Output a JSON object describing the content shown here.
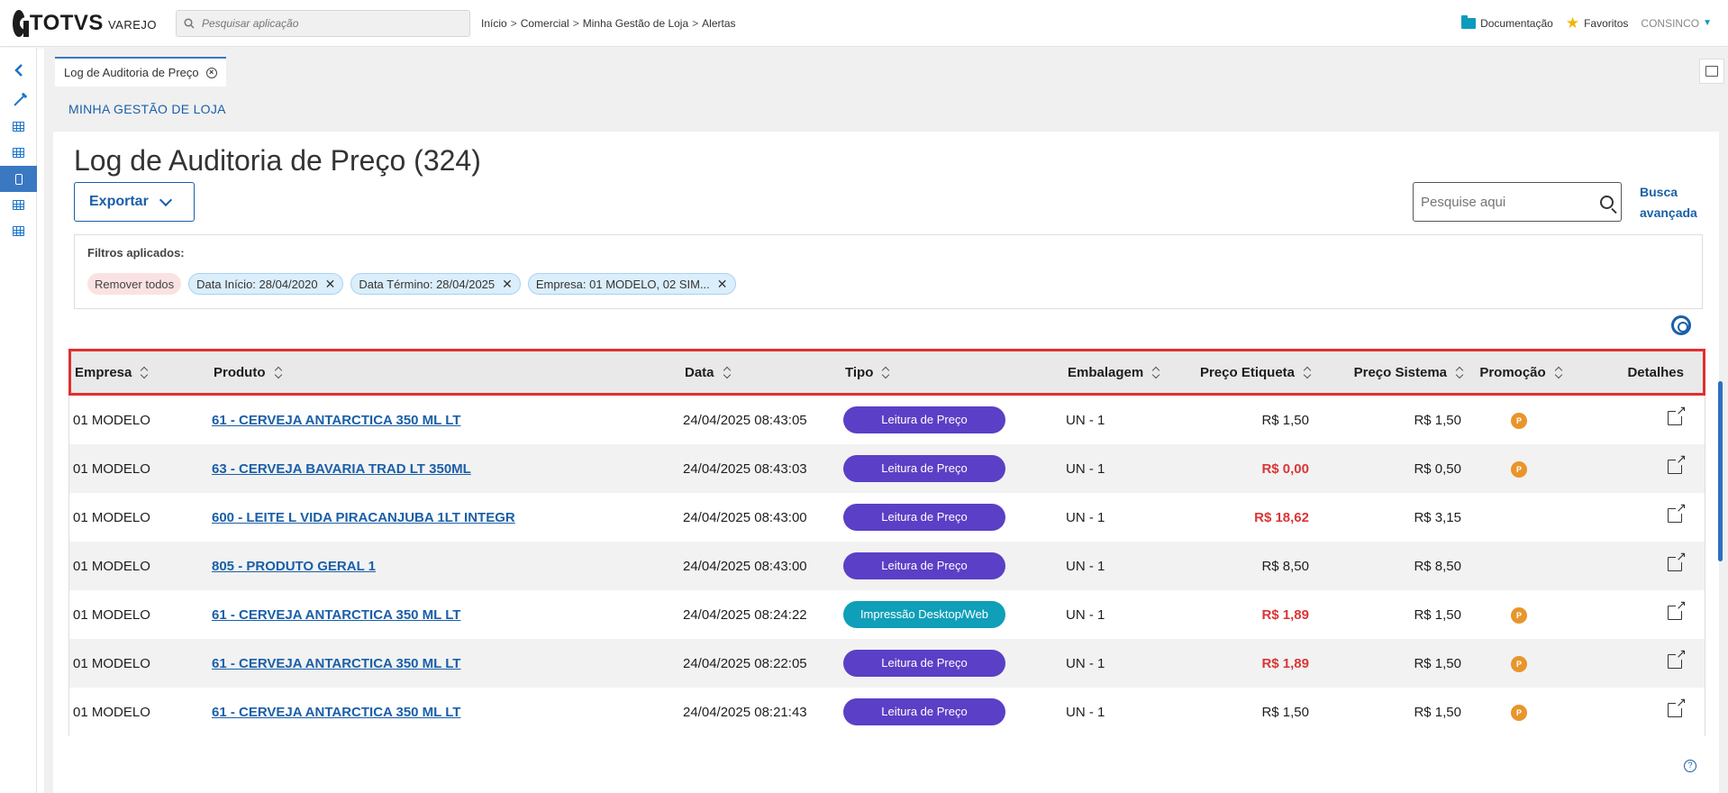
{
  "app": {
    "brand": "TOTVS",
    "brand_sub": "VAREJO"
  },
  "search": {
    "placeholder": "Pesquisar aplicação"
  },
  "breadcrumb": [
    "Início",
    "Comercial",
    "Minha Gestão de Loja",
    "Alertas"
  ],
  "breadcrumb_sep": ">",
  "header_links": {
    "docs": "Documentação",
    "favorites": "Favoritos",
    "user": "CONSINCO"
  },
  "tab": {
    "label": "Log de Auditoria de Preço"
  },
  "section": {
    "title": "MINHA GESTÃO DE LOJA"
  },
  "page": {
    "title": "Log de Auditoria de Preço (324)",
    "export_label": "Exportar",
    "search_placeholder": "Pesquise aqui",
    "adv_search_line1": "Busca",
    "adv_search_line2": "avançada"
  },
  "filters": {
    "label": "Filtros aplicados:",
    "remove_all": "Remover todos",
    "chips": [
      "Data Início: 28/04/2020",
      "Data Término: 28/04/2025",
      "Empresa: 01 MODELO, 02 SIM..."
    ]
  },
  "table": {
    "headers": {
      "empresa": "Empresa",
      "produto": "Produto",
      "data": "Data",
      "tipo": "Tipo",
      "embalagem": "Embalagem",
      "preco_etiqueta": "Preço Etiqueta",
      "preco_sistema": "Preço Sistema",
      "promocao": "Promoção",
      "detalhes": "Detalhes"
    },
    "rows": [
      {
        "empresa": "01 MODELO",
        "produto": "61 - CERVEJA ANTARCTICA 350 ML LT",
        "data": "24/04/2025 08:43:05",
        "tipo": "Leitura de Preço",
        "embalagem": "UN - 1",
        "preco_etiqueta": "R$ 1,50",
        "preco_sistema": "R$ 1,50",
        "promocao": "P"
      },
      {
        "empresa": "01 MODELO",
        "produto": "63 - CERVEJA BAVARIA TRAD LT 350ML",
        "data": "24/04/2025 08:43:03",
        "tipo": "Leitura de Preço",
        "embalagem": "UN - 1",
        "preco_etiqueta": "R$ 0,00",
        "preco_sistema": "R$ 0,50",
        "promocao": "P"
      },
      {
        "empresa": "01 MODELO",
        "produto": "600 - LEITE L VIDA PIRACANJUBA 1LT INTEGR",
        "data": "24/04/2025 08:43:00",
        "tipo": "Leitura de Preço",
        "embalagem": "UN - 1",
        "preco_etiqueta": "R$ 18,62",
        "preco_sistema": "R$ 3,15",
        "promocao": ""
      },
      {
        "empresa": "01 MODELO",
        "produto": "805 - PRODUTO GERAL 1",
        "data": "24/04/2025 08:43:00",
        "tipo": "Leitura de Preço",
        "embalagem": "UN - 1",
        "preco_etiqueta": "R$ 8,50",
        "preco_sistema": "R$ 8,50",
        "promocao": ""
      },
      {
        "empresa": "01 MODELO",
        "produto": "61 - CERVEJA ANTARCTICA 350 ML LT",
        "data": "24/04/2025 08:24:22",
        "tipo": "Impressão Desktop/Web",
        "embalagem": "UN - 1",
        "preco_etiqueta": "R$ 1,89",
        "preco_sistema": "R$ 1,50",
        "promocao": "P"
      },
      {
        "empresa": "01 MODELO",
        "produto": "61 - CERVEJA ANTARCTICA 350 ML LT",
        "data": "24/04/2025 08:22:05",
        "tipo": "Leitura de Preço",
        "embalagem": "UN - 1",
        "preco_etiqueta": "R$ 1,89",
        "preco_sistema": "R$ 1,50",
        "promocao": "P"
      },
      {
        "empresa": "01 MODELO",
        "produto": "61 - CERVEJA ANTARCTICA 350 ML LT",
        "data": "24/04/2025 08:21:43",
        "tipo": "Leitura de Preço",
        "embalagem": "UN - 1",
        "preco_etiqueta": "R$ 1,50",
        "preco_sistema": "R$ 1,50",
        "promocao": "P"
      }
    ]
  },
  "colors": {
    "accent": "#1a5fa8",
    "leitura": "#5b3fc6",
    "impressao": "#0f9fb8",
    "price_mismatch": "#d93636",
    "promo": "#e8952b",
    "header_highlight": "#e03030"
  }
}
